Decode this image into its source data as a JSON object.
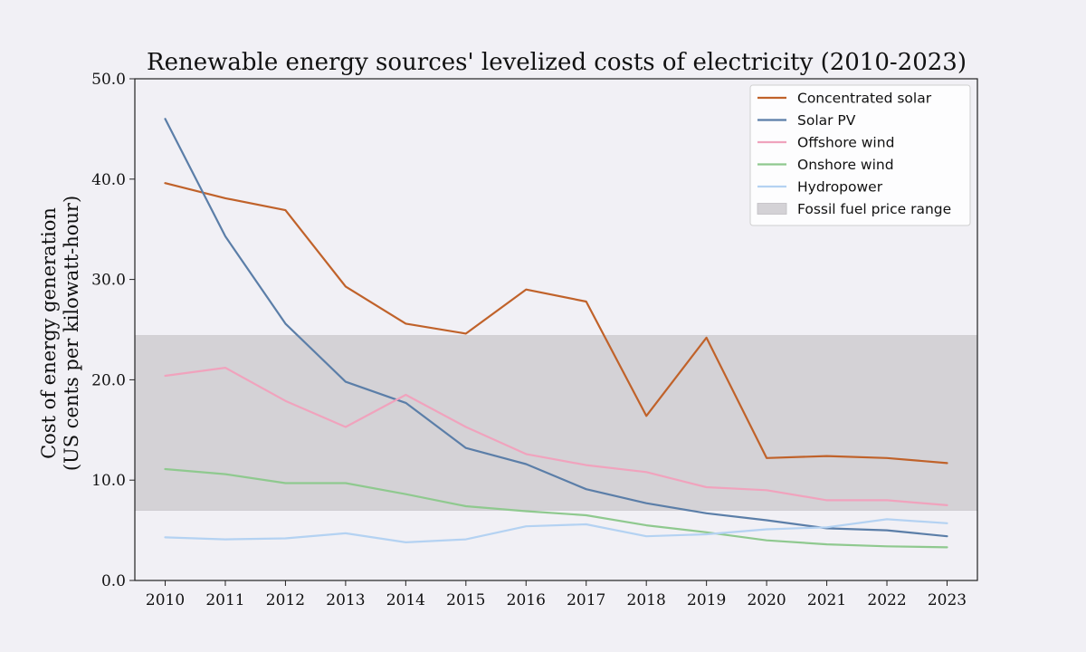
{
  "chart_data": {
    "type": "line",
    "title": "Renewable energy sources' levelized costs of electricity (2010-2023)",
    "xlabel": "",
    "ylabel_line1": "Cost of energy generation",
    "ylabel_line2": "(US cents per kilowatt-hour)",
    "x": [
      2010,
      2011,
      2012,
      2013,
      2014,
      2015,
      2016,
      2017,
      2018,
      2019,
      2020,
      2021,
      2022,
      2023
    ],
    "x_tick_labels": [
      "2010",
      "2011",
      "2012",
      "2013",
      "2014",
      "2015",
      "2016",
      "2017",
      "2018",
      "2019",
      "2020",
      "2021",
      "2022",
      "2023"
    ],
    "ylim": [
      0,
      50
    ],
    "y_ticks": [
      0,
      10,
      20,
      30,
      40,
      50
    ],
    "y_tick_labels": [
      "0.0",
      "10.0",
      "20.0",
      "30.0",
      "40.0",
      "50.0"
    ],
    "grid": false,
    "legend_position": "top-right",
    "series": [
      {
        "name": "Concentrated solar",
        "color": "#c0622a",
        "values": [
          39.6,
          38.1,
          36.9,
          29.3,
          25.6,
          24.6,
          29.0,
          27.8,
          16.4,
          24.2,
          12.2,
          12.4,
          12.2,
          11.7
        ]
      },
      {
        "name": "Solar PV",
        "color": "#5b7ea8",
        "values": [
          46.0,
          34.3,
          25.6,
          19.8,
          17.7,
          13.2,
          11.6,
          9.1,
          7.7,
          6.7,
          6.0,
          5.2,
          5.0,
          4.4
        ]
      },
      {
        "name": "Offshore wind",
        "color": "#f0a3bd",
        "values": [
          20.4,
          21.2,
          17.9,
          15.3,
          18.5,
          15.3,
          12.6,
          11.5,
          10.8,
          9.3,
          9.0,
          8.0,
          8.0,
          7.5
        ]
      },
      {
        "name": "Onshore wind",
        "color": "#8fc98f",
        "values": [
          11.1,
          10.6,
          9.7,
          9.7,
          8.6,
          7.4,
          6.9,
          6.5,
          5.5,
          4.8,
          4.0,
          3.6,
          3.4,
          3.3
        ]
      },
      {
        "name": "Hydropower",
        "color": "#b4d2f2",
        "values": [
          4.3,
          4.1,
          4.2,
          4.7,
          3.8,
          4.1,
          5.4,
          5.6,
          4.4,
          4.6,
          5.1,
          5.3,
          6.1,
          5.7
        ]
      }
    ],
    "band": {
      "name": "Fossil fuel price range",
      "color": "#d4d2d6",
      "range": [
        7.0,
        24.4
      ]
    }
  }
}
